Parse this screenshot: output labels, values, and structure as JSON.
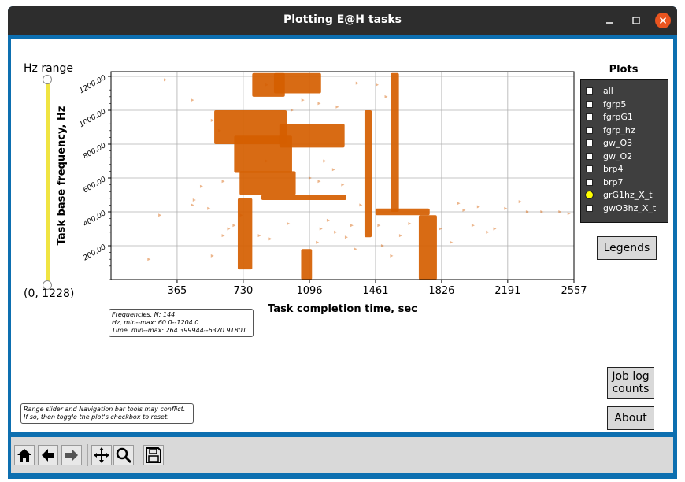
{
  "window": {
    "title": "Plotting E@H tasks"
  },
  "slider": {
    "label": "Hz range",
    "value_text": "(0, 1228)",
    "track_color": "#f0e442"
  },
  "chart_data": {
    "type": "scatter",
    "xlabel": "Task completion time, sec",
    "ylabel": "Task base frequency, Hz",
    "x_ticks": [
      "365",
      "730",
      "1096",
      "1461",
      "1826",
      "2191",
      "2557"
    ],
    "y_ticks": [
      "200.00",
      "400.00",
      "600.00",
      "800.00",
      "1000.00",
      "1200.00"
    ],
    "xlim": [
      0,
      2557
    ],
    "ylim": [
      0,
      1228
    ],
    "grid": true,
    "marker_color": "#d55e00",
    "dense_regions": [
      {
        "x": [
          570,
          970
        ],
        "y": [
          800,
          1000
        ]
      },
      {
        "x": [
          680,
          1000
        ],
        "y": [
          630,
          850
        ]
      },
      {
        "x": [
          710,
          1020
        ],
        "y": [
          500,
          640
        ]
      },
      {
        "x": [
          780,
          960
        ],
        "y": [
          1080,
          1220
        ]
      },
      {
        "x": [
          900,
          1160
        ],
        "y": [
          1100,
          1220
        ]
      },
      {
        "x": [
          930,
          1290
        ],
        "y": [
          780,
          920
        ]
      },
      {
        "x": [
          830,
          1300
        ],
        "y": [
          470,
          500
        ]
      },
      {
        "x": [
          1400,
          1440
        ],
        "y": [
          250,
          1000
        ]
      },
      {
        "x": [
          1545,
          1590
        ],
        "y": [
          400,
          1220
        ]
      },
      {
        "x": [
          1700,
          1800
        ],
        "y": [
          0,
          380
        ]
      },
      {
        "x": [
          1460,
          1760
        ],
        "y": [
          380,
          420
        ]
      },
      {
        "x": [
          1050,
          1110
        ],
        "y": [
          0,
          180
        ]
      },
      {
        "x": [
          700,
          780
        ],
        "y": [
          60,
          480
        ]
      }
    ],
    "sparse_points": [
      [
        210,
        120
      ],
      [
        450,
        440
      ],
      [
        460,
        470
      ],
      [
        270,
        380
      ],
      [
        540,
        420
      ],
      [
        560,
        140
      ],
      [
        620,
        260
      ],
      [
        650,
        300
      ],
      [
        680,
        320
      ],
      [
        720,
        380
      ],
      [
        820,
        260
      ],
      [
        880,
        240
      ],
      [
        980,
        330
      ],
      [
        1140,
        220
      ],
      [
        1160,
        300
      ],
      [
        1200,
        350
      ],
      [
        1240,
        280
      ],
      [
        1300,
        250
      ],
      [
        1330,
        320
      ],
      [
        1350,
        180
      ],
      [
        1380,
        440
      ],
      [
        1480,
        320
      ],
      [
        1500,
        200
      ],
      [
        1600,
        260
      ],
      [
        1650,
        330
      ],
      [
        1880,
        220
      ],
      [
        1950,
        410
      ],
      [
        2030,
        430
      ],
      [
        2080,
        280
      ],
      [
        2120,
        300
      ],
      [
        2180,
        420
      ],
      [
        2260,
        460
      ],
      [
        2300,
        400
      ],
      [
        2380,
        400
      ],
      [
        2480,
        400
      ],
      [
        2530,
        390
      ],
      [
        300,
        1180
      ],
      [
        450,
        1060
      ],
      [
        560,
        940
      ],
      [
        600,
        880
      ],
      [
        860,
        1150
      ],
      [
        1000,
        1000
      ],
      [
        1060,
        1060
      ],
      [
        1150,
        1040
      ],
      [
        1250,
        1020
      ],
      [
        1360,
        1160
      ],
      [
        1470,
        1150
      ],
      [
        1520,
        1080
      ],
      [
        1180,
        700
      ],
      [
        1230,
        650
      ],
      [
        1280,
        560
      ],
      [
        860,
        700
      ],
      [
        500,
        550
      ],
      [
        620,
        580
      ],
      [
        1820,
        300
      ],
      [
        1920,
        450
      ],
      [
        2000,
        320
      ],
      [
        1550,
        140
      ],
      [
        1100,
        600
      ],
      [
        1150,
        580
      ]
    ]
  },
  "plots": {
    "title": "Plots",
    "items": [
      {
        "label": "all",
        "checked": false
      },
      {
        "label": "fgrp5",
        "checked": false
      },
      {
        "label": "fgrpG1",
        "checked": false
      },
      {
        "label": "fgrp_hz",
        "checked": false
      },
      {
        "label": "gw_O3",
        "checked": false
      },
      {
        "label": "gw_O2",
        "checked": false
      },
      {
        "label": "brp4",
        "checked": false
      },
      {
        "label": "brp7",
        "checked": false
      },
      {
        "label": "grG1hz_X_t",
        "checked": true
      },
      {
        "label": "gwO3hz_X_t",
        "checked": false
      }
    ],
    "checked_color": "#ffff00"
  },
  "buttons": {
    "legends": "Legends",
    "job_log_line1": "Job log",
    "job_log_line2": "counts",
    "about": "About"
  },
  "stats": {
    "line1": "Frequencies, N: 144",
    "line2": "Hz, min--max: 60.0--1204.0",
    "line3": "Time, min--max: 264.399944--6370.91801"
  },
  "note": {
    "line1": "Range slider and Navigation bar tools may conflict.",
    "line2": "If so, then toggle the plot's checkbox to reset."
  },
  "toolbar": {
    "icons": [
      "home-icon",
      "back-arrow-icon",
      "forward-arrow-icon",
      "pan-icon",
      "zoom-icon",
      "save-icon"
    ]
  }
}
